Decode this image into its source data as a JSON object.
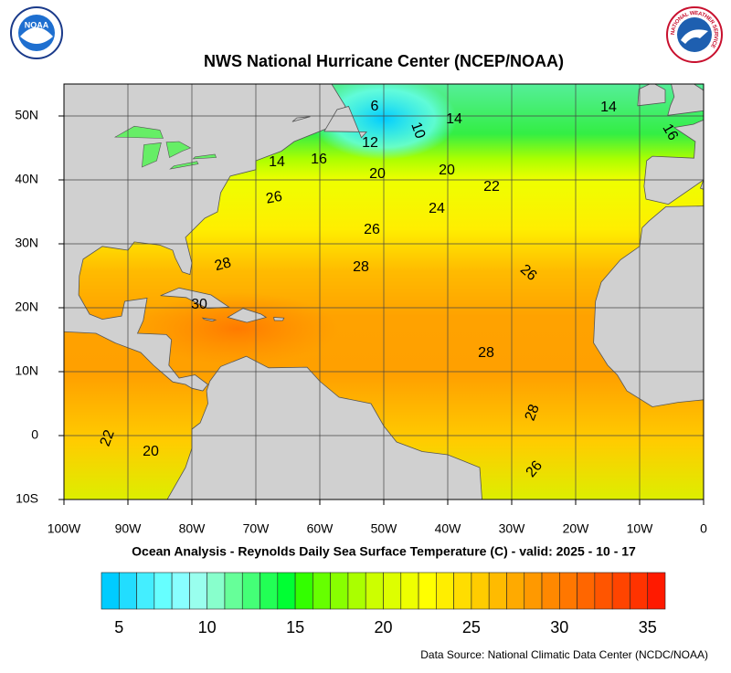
{
  "title": "NWS National Hurricane Center (NCEP/NOAA)",
  "subtitle": "Ocean Analysis - Reynolds Daily Sea Surface Temperature (C) - valid: 2025 - 10 - 17",
  "source": "Data Source: National Climatic Data Center (NCDC/NOAA)",
  "logos": {
    "noaa": "NOAA",
    "nws": "NATIONAL WEATHER SERVICE"
  },
  "map": {
    "lonlim": [
      -100,
      0
    ],
    "latlim": [
      -10,
      55
    ],
    "lon_ticks": [
      {
        "value": -100,
        "label": "100W"
      },
      {
        "value": -90,
        "label": "90W"
      },
      {
        "value": -80,
        "label": "80W"
      },
      {
        "value": -70,
        "label": "70W"
      },
      {
        "value": -60,
        "label": "60W"
      },
      {
        "value": -50,
        "label": "50W"
      },
      {
        "value": -40,
        "label": "40W"
      },
      {
        "value": -30,
        "label": "30W"
      },
      {
        "value": -20,
        "label": "20W"
      },
      {
        "value": -10,
        "label": "10W"
      },
      0
    ],
    "lat_ticks": [
      {
        "value": 50,
        "label": "50N"
      },
      {
        "value": 40,
        "label": "40N"
      },
      {
        "value": 30,
        "label": "30N"
      },
      {
        "value": 20,
        "label": "20N"
      },
      {
        "value": 10,
        "label": "10N"
      },
      0,
      {
        "value": -10,
        "label": "10S"
      }
    ],
    "grid": true,
    "contour_labels": [
      6,
      10,
      14,
      14,
      16,
      12,
      14,
      16,
      20,
      20,
      22,
      24,
      26,
      26,
      28,
      28,
      26,
      30,
      28,
      28,
      26,
      22,
      20
    ]
  },
  "colorbar": {
    "range": [
      4,
      36
    ],
    "ticks": [
      5,
      10,
      15,
      20,
      25,
      30,
      35
    ],
    "colors": [
      "#00ccff",
      "#22ddff",
      "#44eeff",
      "#66ffff",
      "#88ffff",
      "#99ffee",
      "#88ffcc",
      "#66ff99",
      "#44ff77",
      "#22ff55",
      "#00ff33",
      "#33ff00",
      "#66ff00",
      "#88ff00",
      "#aaff00",
      "#ccff00",
      "#ddff00",
      "#eeff00",
      "#ffff00",
      "#ffee00",
      "#ffdd00",
      "#ffcc00",
      "#ffbb00",
      "#ffaa00",
      "#ff9900",
      "#ff8800",
      "#ff7700",
      "#ff6600",
      "#ff5500",
      "#ff4400",
      "#ff3300",
      "#ff1a00"
    ]
  }
}
